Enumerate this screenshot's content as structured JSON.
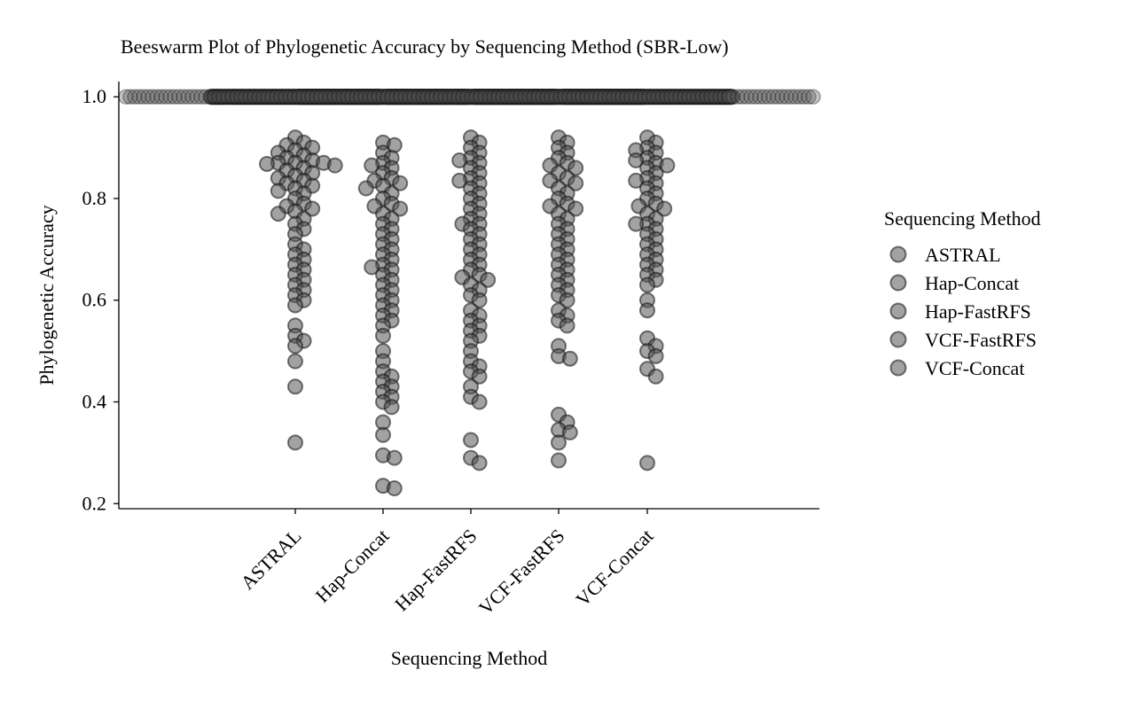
{
  "chart_data": {
    "type": "scatter",
    "subtype": "beeswarm",
    "title": "Beeswarm Plot of Phylogenetic Accuracy by Sequencing Method (SBR-Low)",
    "xlabel": "Sequencing Method",
    "ylabel": "Phylogenetic Accuracy",
    "categories": [
      "ASTRAL",
      "Hap-Concat",
      "Hap-FastRFS",
      "VCF-FastRFS",
      "VCF-Concat"
    ],
    "ylim": [
      0.19,
      1.03
    ],
    "yticks": [
      "0.2",
      "0.4",
      "0.6",
      "0.8",
      "1.0"
    ],
    "grid": false,
    "legend": {
      "title": "Sequencing Method",
      "placement": "right"
    },
    "marker_color": "#555555",
    "marker_edge_color": "#111111",
    "marker_opacity": 0.55,
    "series": [
      {
        "name": "ASTRAL",
        "n_at_max": 160,
        "values": [
          0.92,
          0.91,
          0.905,
          0.9,
          0.895,
          0.89,
          0.885,
          0.88,
          0.875,
          0.87,
          0.87,
          0.87,
          0.868,
          0.865,
          0.86,
          0.855,
          0.85,
          0.845,
          0.84,
          0.835,
          0.83,
          0.825,
          0.82,
          0.815,
          0.81,
          0.8,
          0.79,
          0.785,
          0.78,
          0.775,
          0.77,
          0.76,
          0.75,
          0.74,
          0.73,
          0.71,
          0.7,
          0.69,
          0.68,
          0.67,
          0.66,
          0.65,
          0.64,
          0.63,
          0.62,
          0.61,
          0.6,
          0.59,
          0.55,
          0.53,
          0.52,
          0.51,
          0.48,
          0.43,
          0.32
        ]
      },
      {
        "name": "Hap-Concat",
        "n_at_max": 140,
        "values": [
          0.91,
          0.905,
          0.89,
          0.88,
          0.87,
          0.865,
          0.86,
          0.85,
          0.84,
          0.835,
          0.83,
          0.825,
          0.82,
          0.81,
          0.8,
          0.79,
          0.785,
          0.78,
          0.77,
          0.76,
          0.75,
          0.74,
          0.73,
          0.72,
          0.71,
          0.7,
          0.69,
          0.68,
          0.67,
          0.665,
          0.66,
          0.65,
          0.64,
          0.63,
          0.62,
          0.61,
          0.6,
          0.59,
          0.58,
          0.57,
          0.56,
          0.55,
          0.53,
          0.5,
          0.48,
          0.46,
          0.45,
          0.44,
          0.43,
          0.42,
          0.41,
          0.4,
          0.39,
          0.36,
          0.335,
          0.295,
          0.29,
          0.235,
          0.23
        ]
      },
      {
        "name": "Hap-FastRFS",
        "n_at_max": 140,
        "values": [
          0.92,
          0.91,
          0.9,
          0.89,
          0.88,
          0.875,
          0.87,
          0.86,
          0.85,
          0.84,
          0.835,
          0.83,
          0.82,
          0.81,
          0.8,
          0.79,
          0.78,
          0.77,
          0.76,
          0.75,
          0.75,
          0.74,
          0.73,
          0.72,
          0.71,
          0.7,
          0.69,
          0.68,
          0.67,
          0.66,
          0.65,
          0.645,
          0.64,
          0.63,
          0.62,
          0.61,
          0.6,
          0.58,
          0.57,
          0.56,
          0.55,
          0.54,
          0.53,
          0.52,
          0.5,
          0.48,
          0.47,
          0.46,
          0.45,
          0.43,
          0.41,
          0.4,
          0.325,
          0.29,
          0.28
        ]
      },
      {
        "name": "VCF-FastRFS",
        "n_at_max": 150,
        "values": [
          0.92,
          0.91,
          0.9,
          0.89,
          0.88,
          0.87,
          0.865,
          0.86,
          0.85,
          0.84,
          0.835,
          0.83,
          0.82,
          0.81,
          0.8,
          0.79,
          0.785,
          0.78,
          0.77,
          0.76,
          0.75,
          0.74,
          0.73,
          0.72,
          0.71,
          0.7,
          0.69,
          0.68,
          0.67,
          0.66,
          0.65,
          0.64,
          0.63,
          0.62,
          0.61,
          0.6,
          0.58,
          0.57,
          0.56,
          0.55,
          0.51,
          0.49,
          0.485,
          0.375,
          0.36,
          0.345,
          0.34,
          0.32,
          0.285
        ]
      },
      {
        "name": "VCF-Concat",
        "n_at_max": 150,
        "values": [
          0.92,
          0.91,
          0.9,
          0.895,
          0.89,
          0.88,
          0.875,
          0.87,
          0.865,
          0.86,
          0.85,
          0.84,
          0.835,
          0.83,
          0.82,
          0.81,
          0.8,
          0.79,
          0.785,
          0.78,
          0.77,
          0.76,
          0.75,
          0.75,
          0.74,
          0.73,
          0.72,
          0.71,
          0.7,
          0.69,
          0.68,
          0.67,
          0.66,
          0.65,
          0.64,
          0.63,
          0.6,
          0.58,
          0.525,
          0.51,
          0.5,
          0.49,
          0.465,
          0.45,
          0.28
        ]
      }
    ]
  }
}
